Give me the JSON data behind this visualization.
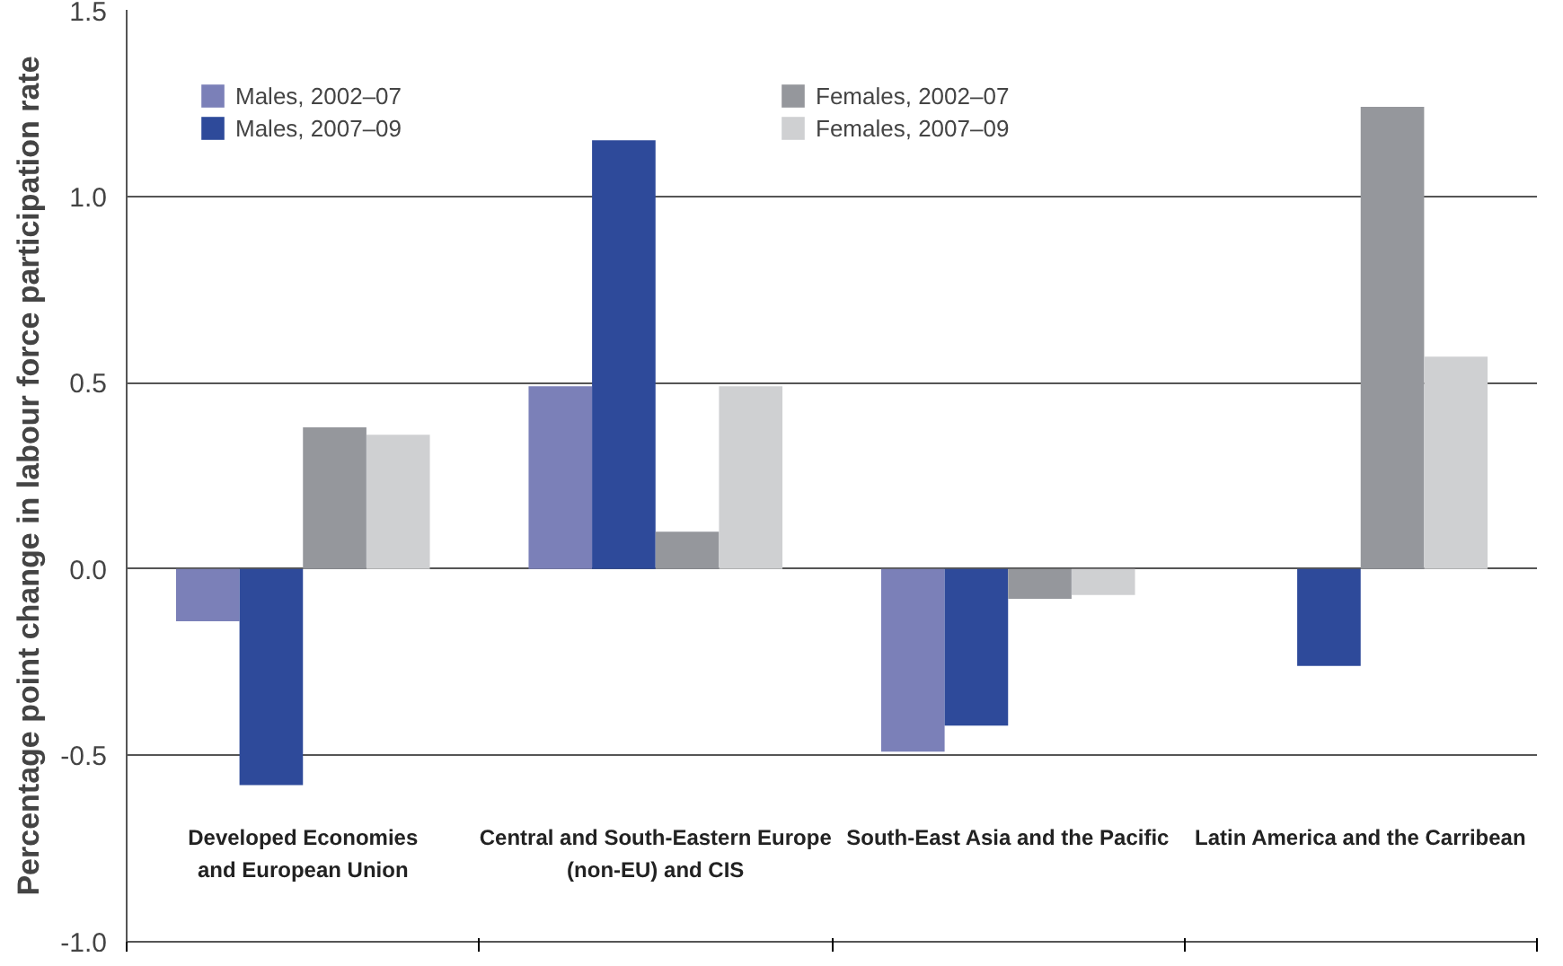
{
  "chart_data": {
    "type": "bar",
    "ylabel": "Percentage point change in labour force participation rate",
    "categories": [
      "Developed Economies\nand European Union",
      "Central and South-Eastern Europe\n(non-EU) and CIS",
      "South-East Asia and the Pacific",
      "Latin America and the Carribean"
    ],
    "series": [
      {
        "name": "Males, 2002–07",
        "color": "#7b80b8",
        "values": [
          -0.14,
          0.49,
          -0.49,
          0.0
        ]
      },
      {
        "name": "Males, 2007–09",
        "color": "#2e4a9a",
        "values": [
          -0.58,
          1.15,
          -0.42,
          -0.26
        ]
      },
      {
        "name": "Females, 2002–07",
        "color": "#95979c",
        "values": [
          0.38,
          0.1,
          -0.08,
          1.24
        ]
      },
      {
        "name": "Females, 2007–09",
        "color": "#cfd0d2",
        "values": [
          0.36,
          0.49,
          -0.07,
          0.57
        ]
      }
    ],
    "ylim": [
      -1.0,
      1.5
    ],
    "yticks": [
      {
        "value": -1.0,
        "label": "-1.0"
      },
      {
        "value": -0.5,
        "label": "-0.5"
      },
      {
        "value": 0.0,
        "label": "0.0"
      },
      {
        "value": 0.5,
        "label": "0.5"
      },
      {
        "value": 1.0,
        "label": "1.0"
      },
      {
        "value": 1.5,
        "label": "1.5"
      }
    ],
    "grid": "y",
    "legend": "top left"
  }
}
